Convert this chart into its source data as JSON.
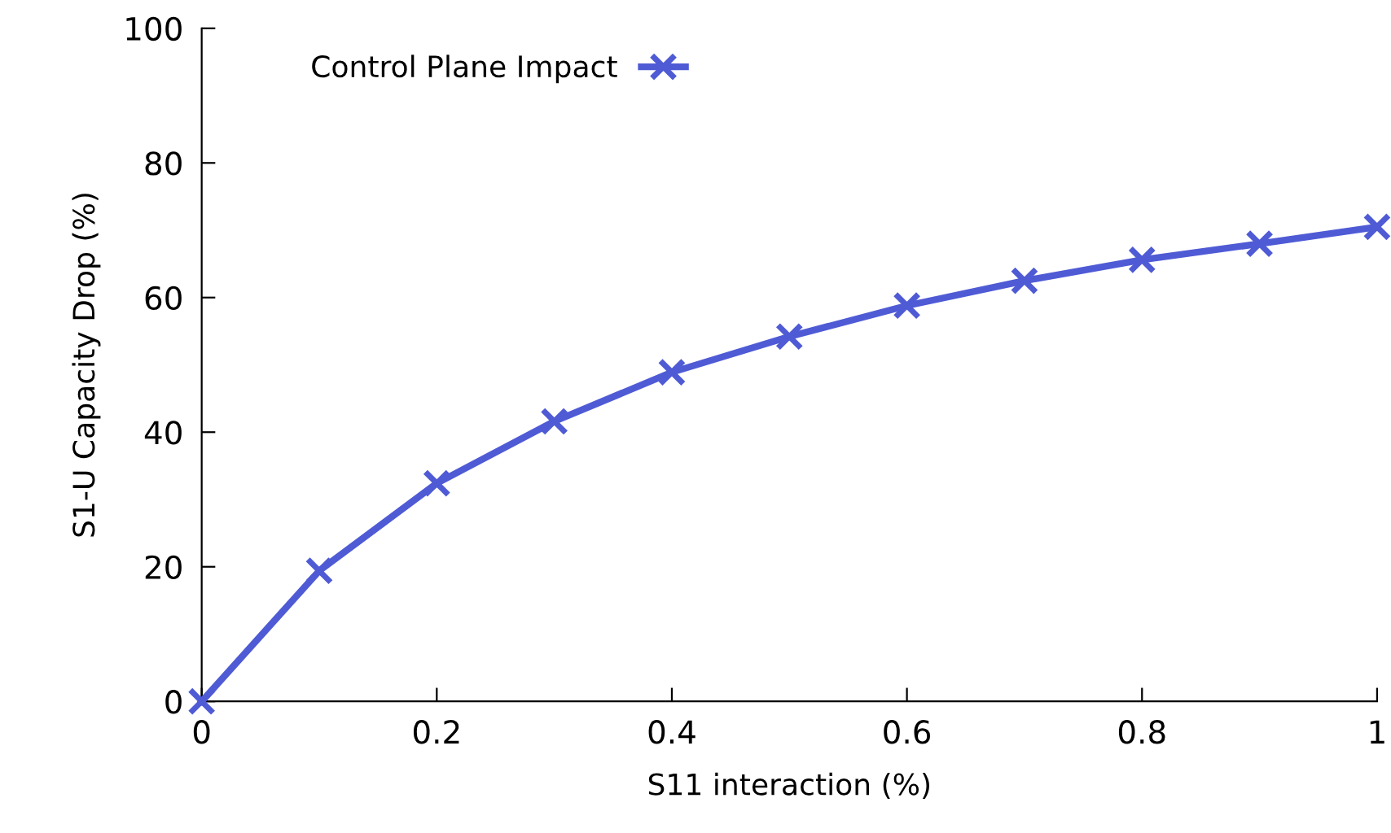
{
  "chart_data": {
    "type": "line",
    "xlabel": "S11 interaction (%)",
    "ylabel": "S1-U Capacity Drop (%)",
    "x": [
      0,
      0.1,
      0.2,
      0.3,
      0.4,
      0.5,
      0.6,
      0.7,
      0.8,
      0.9,
      1.0
    ],
    "series": [
      {
        "name": "Control Plane Impact",
        "color": "#4f5bd5",
        "values": [
          0,
          19.4,
          32.4,
          41.6,
          48.9,
          54.2,
          58.8,
          62.5,
          65.6,
          68.0,
          70.5
        ]
      }
    ],
    "xlim": [
      0,
      1
    ],
    "xticks": [
      0,
      0.2,
      0.4,
      0.6,
      0.8,
      1
    ],
    "ylim": [
      0,
      100
    ],
    "yticks": [
      0,
      20,
      40,
      60,
      80,
      100
    ],
    "grid": false,
    "legend": "top left",
    "marker": "cross",
    "line_style": "solid"
  }
}
